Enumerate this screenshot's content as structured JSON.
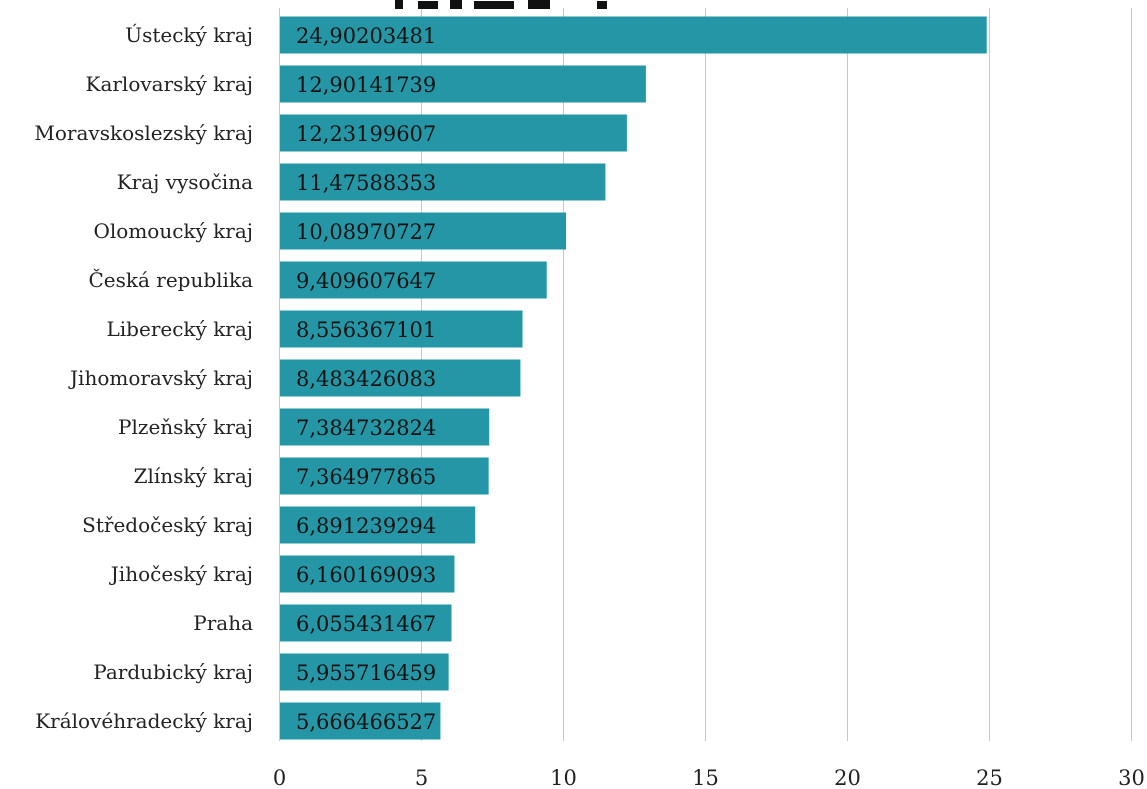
{
  "chart_data": {
    "type": "bar",
    "orientation": "horizontal",
    "bar_color": "#2596a6",
    "categories": [
      "Ústecký kraj",
      "Karlovarský kraj",
      "Moravskoslezský kraj",
      "Kraj vysočina",
      "Olomoucký kraj",
      "Česká republika",
      "Liberecký kraj",
      "Jihomoravský kraj",
      "Plzeňský kraj",
      "Zlínský kraj",
      "Středočeský kraj",
      "Jihočeský kraj",
      "Praha",
      "Pardubický kraj",
      "Královéhradecký kraj"
    ],
    "values": [
      24.90203481,
      12.90141739,
      12.23199607,
      11.47588353,
      10.08970727,
      9.409607647,
      8.556367101,
      8.483426083,
      7.384732824,
      7.364977865,
      6.891239294,
      6.160169093,
      6.055431467,
      5.955716459,
      5.666466527
    ],
    "data_labels": [
      "24,90203481",
      "12,90141739",
      "12,23199607",
      "11,47588353",
      "10,08970727",
      "9,409607647",
      "8,556367101",
      "8,483426083",
      "7,384732824",
      "7,364977865",
      "6,891239294",
      "6,160169093",
      "6,055431467",
      "5,955716459",
      "5,666466527"
    ],
    "x_ticks": [
      "0",
      "5",
      "10",
      "15",
      "20",
      "25",
      "30"
    ],
    "xlim": [
      0,
      30
    ],
    "grid": true,
    "title": "",
    "xlabel": "",
    "ylabel": ""
  }
}
